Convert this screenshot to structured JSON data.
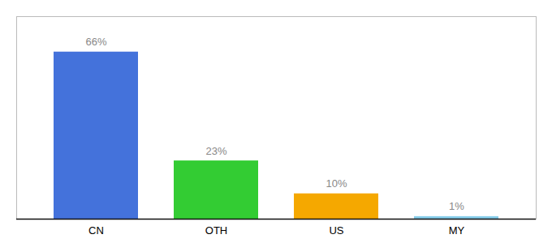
{
  "chart_data": {
    "type": "bar",
    "categories": [
      "CN",
      "OTH",
      "US",
      "MY"
    ],
    "values": [
      66,
      23,
      10,
      1
    ],
    "value_labels": [
      "66%",
      "23%",
      "10%",
      "1%"
    ],
    "colors": [
      "#4472db",
      "#33cc33",
      "#f5a800",
      "#87ceeb"
    ],
    "ylim": [
      0,
      80
    ],
    "data_labels": true,
    "tick_labels": "x",
    "grid": false
  }
}
